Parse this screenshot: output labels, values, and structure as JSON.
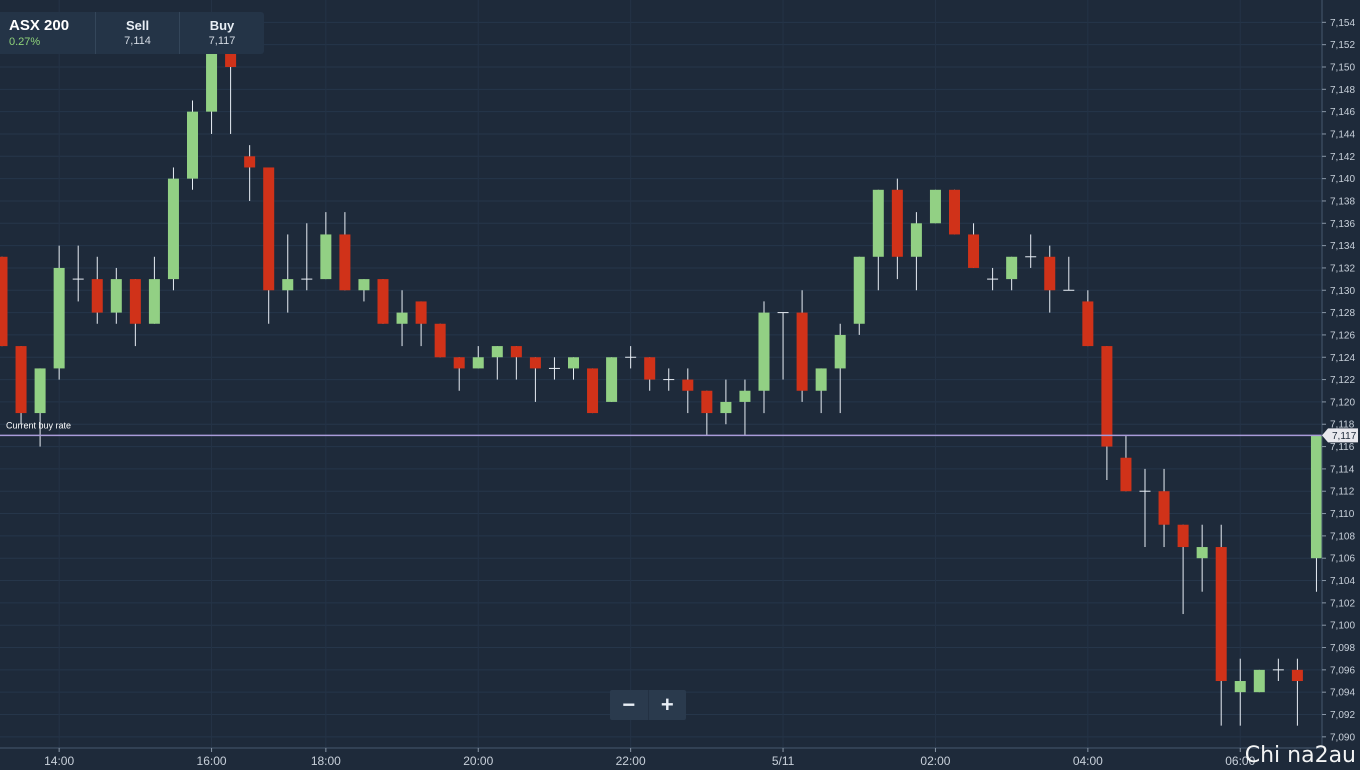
{
  "quote": {
    "symbol": "ASX 200",
    "change": "0.27%",
    "sell_label": "Sell",
    "sell_value": "7,114",
    "buy_label": "Buy",
    "buy_value": "7,117"
  },
  "zoom": {
    "minus_icon": "minus-icon",
    "plus_icon": "plus-icon"
  },
  "watermark": "Chi na2au",
  "colors": {
    "background": "#1e2a3a",
    "up": "#92d084",
    "down": "#d03219",
    "buy_line": "#a99bd8"
  },
  "chart_data": {
    "type": "candlestick",
    "current_buy_rate_label": "Current buy rate",
    "current_buy_rate": 7117,
    "current_buy_rate_text": "7,117",
    "ylim": [
      7089,
      7156
    ],
    "y_ticks": [
      7090,
      7092,
      7094,
      7096,
      7098,
      7100,
      7102,
      7104,
      7106,
      7108,
      7110,
      7112,
      7114,
      7116,
      7118,
      7120,
      7122,
      7124,
      7126,
      7128,
      7130,
      7132,
      7134,
      7136,
      7138,
      7140,
      7142,
      7144,
      7146,
      7148,
      7150,
      7152,
      7154
    ],
    "x_ticks": [
      {
        "label": "14:00",
        "i": 3
      },
      {
        "label": "16:00",
        "i": 11
      },
      {
        "label": "18:00",
        "i": 17
      },
      {
        "label": "20:00",
        "i": 25
      },
      {
        "label": "22:00",
        "i": 33
      },
      {
        "label": "5/11",
        "i": 41
      },
      {
        "label": "02:00",
        "i": 49
      },
      {
        "label": "04:00",
        "i": 57
      },
      {
        "label": "06:00",
        "i": 65
      }
    ],
    "candles": [
      {
        "o": 7133,
        "h": 7133,
        "l": 7125,
        "c": 7125
      },
      {
        "o": 7125,
        "h": 7125,
        "l": 7118,
        "c": 7119
      },
      {
        "o": 7119,
        "h": 7123,
        "l": 7116,
        "c": 7123
      },
      {
        "o": 7123,
        "h": 7134,
        "l": 7122,
        "c": 7132
      },
      {
        "o": 7131,
        "h": 7134,
        "l": 7129,
        "c": 7131
      },
      {
        "o": 7131,
        "h": 7133,
        "l": 7127,
        "c": 7128
      },
      {
        "o": 7128,
        "h": 7132,
        "l": 7127,
        "c": 7131
      },
      {
        "o": 7131,
        "h": 7131,
        "l": 7125,
        "c": 7127
      },
      {
        "o": 7127,
        "h": 7133,
        "l": 7127,
        "c": 7131
      },
      {
        "o": 7131,
        "h": 7141,
        "l": 7130,
        "c": 7140
      },
      {
        "o": 7140,
        "h": 7147,
        "l": 7139,
        "c": 7146
      },
      {
        "o": 7146,
        "h": 7153,
        "l": 7144,
        "c": 7152
      },
      {
        "o": 7152,
        "h": 7153,
        "l": 7144,
        "c": 7150
      },
      {
        "o": 7142,
        "h": 7143,
        "l": 7138,
        "c": 7141
      },
      {
        "o": 7141,
        "h": 7141,
        "l": 7127,
        "c": 7130
      },
      {
        "o": 7130,
        "h": 7135,
        "l": 7128,
        "c": 7131
      },
      {
        "o": 7131,
        "h": 7136,
        "l": 7130,
        "c": 7131
      },
      {
        "o": 7131,
        "h": 7137,
        "l": 7131,
        "c": 7135
      },
      {
        "o": 7135,
        "h": 7137,
        "l": 7130,
        "c": 7130
      },
      {
        "o": 7130,
        "h": 7131,
        "l": 7129,
        "c": 7131
      },
      {
        "o": 7131,
        "h": 7131,
        "l": 7127,
        "c": 7127
      },
      {
        "o": 7127,
        "h": 7130,
        "l": 7125,
        "c": 7128
      },
      {
        "o": 7129,
        "h": 7129,
        "l": 7125,
        "c": 7127
      },
      {
        "o": 7127,
        "h": 7127,
        "l": 7124,
        "c": 7124
      },
      {
        "o": 7124,
        "h": 7124,
        "l": 7121,
        "c": 7123
      },
      {
        "o": 7123,
        "h": 7125,
        "l": 7123,
        "c": 7124
      },
      {
        "o": 7124,
        "h": 7125,
        "l": 7122,
        "c": 7125
      },
      {
        "o": 7125,
        "h": 7125,
        "l": 7122,
        "c": 7124
      },
      {
        "o": 7124,
        "h": 7124,
        "l": 7120,
        "c": 7123
      },
      {
        "o": 7123,
        "h": 7124,
        "l": 7122,
        "c": 7123
      },
      {
        "o": 7123,
        "h": 7124,
        "l": 7122,
        "c": 7124
      },
      {
        "o": 7123,
        "h": 7123,
        "l": 7119,
        "c": 7119
      },
      {
        "o": 7120,
        "h": 7124,
        "l": 7120,
        "c": 7124
      },
      {
        "o": 7124,
        "h": 7125,
        "l": 7123,
        "c": 7124
      },
      {
        "o": 7124,
        "h": 7124,
        "l": 7121,
        "c": 7122
      },
      {
        "o": 7122,
        "h": 7123,
        "l": 7121,
        "c": 7122
      },
      {
        "o": 7122,
        "h": 7123,
        "l": 7119,
        "c": 7121
      },
      {
        "o": 7121,
        "h": 7121,
        "l": 7117,
        "c": 7119
      },
      {
        "o": 7119,
        "h": 7122,
        "l": 7118,
        "c": 7120
      },
      {
        "o": 7120,
        "h": 7122,
        "l": 7117,
        "c": 7121
      },
      {
        "o": 7121,
        "h": 7129,
        "l": 7119,
        "c": 7128
      },
      {
        "o": 7128,
        "h": 7128,
        "l": 7122,
        "c": 7128
      },
      {
        "o": 7128,
        "h": 7130,
        "l": 7120,
        "c": 7121
      },
      {
        "o": 7121,
        "h": 7123,
        "l": 7119,
        "c": 7123
      },
      {
        "o": 7123,
        "h": 7127,
        "l": 7119,
        "c": 7126
      },
      {
        "o": 7127,
        "h": 7133,
        "l": 7126,
        "c": 7133
      },
      {
        "o": 7133,
        "h": 7139,
        "l": 7130,
        "c": 7139
      },
      {
        "o": 7139,
        "h": 7140,
        "l": 7131,
        "c": 7133
      },
      {
        "o": 7133,
        "h": 7137,
        "l": 7130,
        "c": 7136
      },
      {
        "o": 7136,
        "h": 7139,
        "l": 7136,
        "c": 7139
      },
      {
        "o": 7139,
        "h": 7139,
        "l": 7135,
        "c": 7135
      },
      {
        "o": 7135,
        "h": 7136,
        "l": 7132,
        "c": 7132
      },
      {
        "o": 7131,
        "h": 7132,
        "l": 7130,
        "c": 7131
      },
      {
        "o": 7131,
        "h": 7133,
        "l": 7130,
        "c": 7133
      },
      {
        "o": 7133,
        "h": 7135,
        "l": 7132,
        "c": 7133
      },
      {
        "o": 7133,
        "h": 7134,
        "l": 7128,
        "c": 7130
      },
      {
        "o": 7130,
        "h": 7133,
        "l": 7130,
        "c": 7130
      },
      {
        "o": 7129,
        "h": 7130,
        "l": 7125,
        "c": 7125
      },
      {
        "o": 7125,
        "h": 7125,
        "l": 7113,
        "c": 7116
      },
      {
        "o": 7115,
        "h": 7117,
        "l": 7112,
        "c": 7112
      },
      {
        "o": 7112,
        "h": 7114,
        "l": 7107,
        "c": 7112
      },
      {
        "o": 7112,
        "h": 7114,
        "l": 7107,
        "c": 7109
      },
      {
        "o": 7109,
        "h": 7109,
        "l": 7101,
        "c": 7107
      },
      {
        "o": 7106,
        "h": 7109,
        "l": 7103,
        "c": 7107
      },
      {
        "o": 7107,
        "h": 7109,
        "l": 7091,
        "c": 7095
      },
      {
        "o": 7094,
        "h": 7097,
        "l": 7091,
        "c": 7095
      },
      {
        "o": 7094,
        "h": 7096,
        "l": 7094,
        "c": 7096
      },
      {
        "o": 7096,
        "h": 7097,
        "l": 7095,
        "c": 7096
      },
      {
        "o": 7096,
        "h": 7097,
        "l": 7091,
        "c": 7095
      },
      {
        "o": 7106,
        "h": 7117,
        "l": 7103,
        "c": 7117
      }
    ]
  }
}
